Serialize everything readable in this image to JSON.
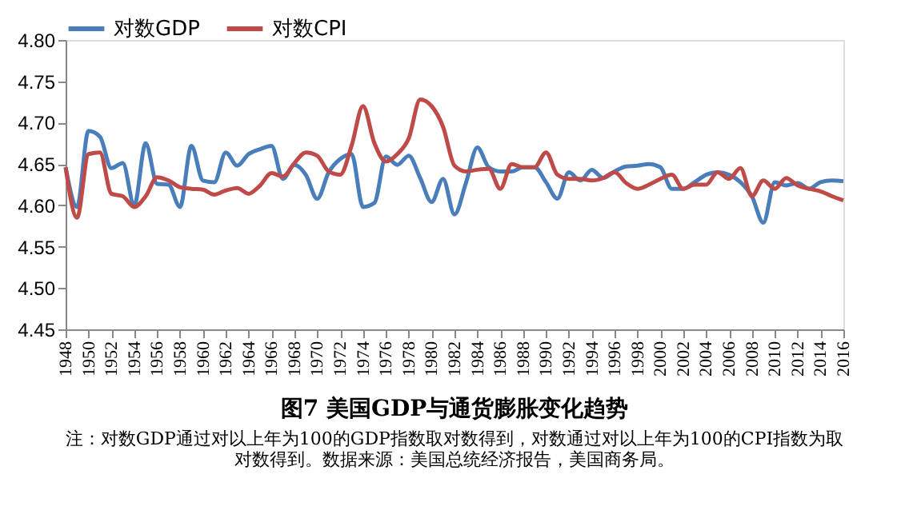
{
  "chart_data": {
    "type": "line",
    "title": "图7  美国GDP与通货膨胀变化趋势",
    "annotations": [
      "注：对数GDP通过对以上年为100的GDP指数取对数得到，对数通过对以上年为100的CPI指数为取对数得到。数据来源：美国总统经济报告，美国商务局。"
    ],
    "x": [
      1948,
      1949,
      1950,
      1951,
      1952,
      1953,
      1954,
      1955,
      1956,
      1957,
      1958,
      1959,
      1960,
      1961,
      1962,
      1963,
      1964,
      1965,
      1966,
      1967,
      1968,
      1969,
      1970,
      1971,
      1972,
      1973,
      1974,
      1975,
      1976,
      1977,
      1978,
      1979,
      1980,
      1981,
      1982,
      1983,
      1984,
      1985,
      1986,
      1987,
      1988,
      1989,
      1990,
      1991,
      1992,
      1993,
      1994,
      1995,
      1996,
      1997,
      1998,
      1999,
      2000,
      2001,
      2002,
      2003,
      2004,
      2005,
      2006,
      2007,
      2008,
      2009,
      2010,
      2011,
      2012,
      2013,
      2014,
      2015,
      2016
    ],
    "series": [
      {
        "name": "对数GDP",
        "color": "#4a7ebb",
        "values": [
          4.646,
          4.598,
          4.69,
          4.683,
          4.645,
          4.651,
          4.6,
          4.675,
          4.626,
          4.625,
          4.598,
          4.672,
          4.63,
          4.628,
          4.664,
          4.648,
          4.662,
          4.668,
          4.672,
          4.632,
          4.649,
          4.637,
          4.608,
          4.64,
          4.656,
          4.662,
          4.598,
          4.603,
          4.659,
          4.649,
          4.66,
          4.633,
          4.604,
          4.632,
          4.589,
          4.627,
          4.67,
          4.646,
          4.641,
          4.641,
          4.646,
          4.646,
          4.628,
          4.608,
          4.64,
          4.63,
          4.643,
          4.633,
          4.641,
          4.647,
          4.648,
          4.65,
          4.646,
          4.62,
          4.62,
          4.628,
          4.637,
          4.64,
          4.637,
          4.628,
          4.611,
          4.579,
          4.628,
          4.624,
          4.627,
          4.62,
          4.628,
          4.63,
          4.629
        ]
      },
      {
        "name": "对数CPI",
        "color": "#be4b48",
        "values": [
          4.646,
          4.585,
          4.662,
          4.664,
          4.614,
          4.611,
          4.598,
          4.611,
          4.634,
          4.63,
          4.622,
          4.62,
          4.619,
          4.613,
          4.618,
          4.621,
          4.614,
          4.624,
          4.639,
          4.635,
          4.651,
          4.664,
          4.66,
          4.641,
          4.637,
          4.672,
          4.72,
          4.675,
          4.653,
          4.662,
          4.681,
          4.728,
          4.72,
          4.695,
          4.648,
          4.641,
          4.643,
          4.644,
          4.62,
          4.65,
          4.646,
          4.646,
          4.664,
          4.637,
          4.632,
          4.632,
          4.63,
          4.633,
          4.64,
          4.627,
          4.62,
          4.625,
          4.632,
          4.637,
          4.62,
          4.625,
          4.625,
          4.64,
          4.632,
          4.645,
          4.611,
          4.63,
          4.62,
          4.633,
          4.624,
          4.62,
          4.617,
          4.611,
          4.606
        ]
      }
    ],
    "xlim": [
      1948,
      2016
    ],
    "xticks": [
      1948,
      1950,
      1952,
      1954,
      1956,
      1958,
      1960,
      1962,
      1964,
      1966,
      1968,
      1970,
      1972,
      1974,
      1976,
      1978,
      1980,
      1982,
      1984,
      1986,
      1988,
      1990,
      1992,
      1994,
      1996,
      1998,
      2000,
      2002,
      2004,
      2006,
      2008,
      2010,
      2012,
      2014,
      2016
    ],
    "ylim": [
      4.45,
      4.8
    ],
    "yticks": [
      4.45,
      {
        "value": 4.5,
        "label": "4.50"
      },
      4.55,
      {
        "value": 4.6,
        "label": "4.60"
      },
      4.65,
      {
        "value": 4.7,
        "label": "4.70"
      },
      4.75,
      {
        "value": 4.8,
        "label": "4.80"
      }
    ],
    "legend": "top",
    "grid": false,
    "marker": "none",
    "line_style": "solid"
  }
}
